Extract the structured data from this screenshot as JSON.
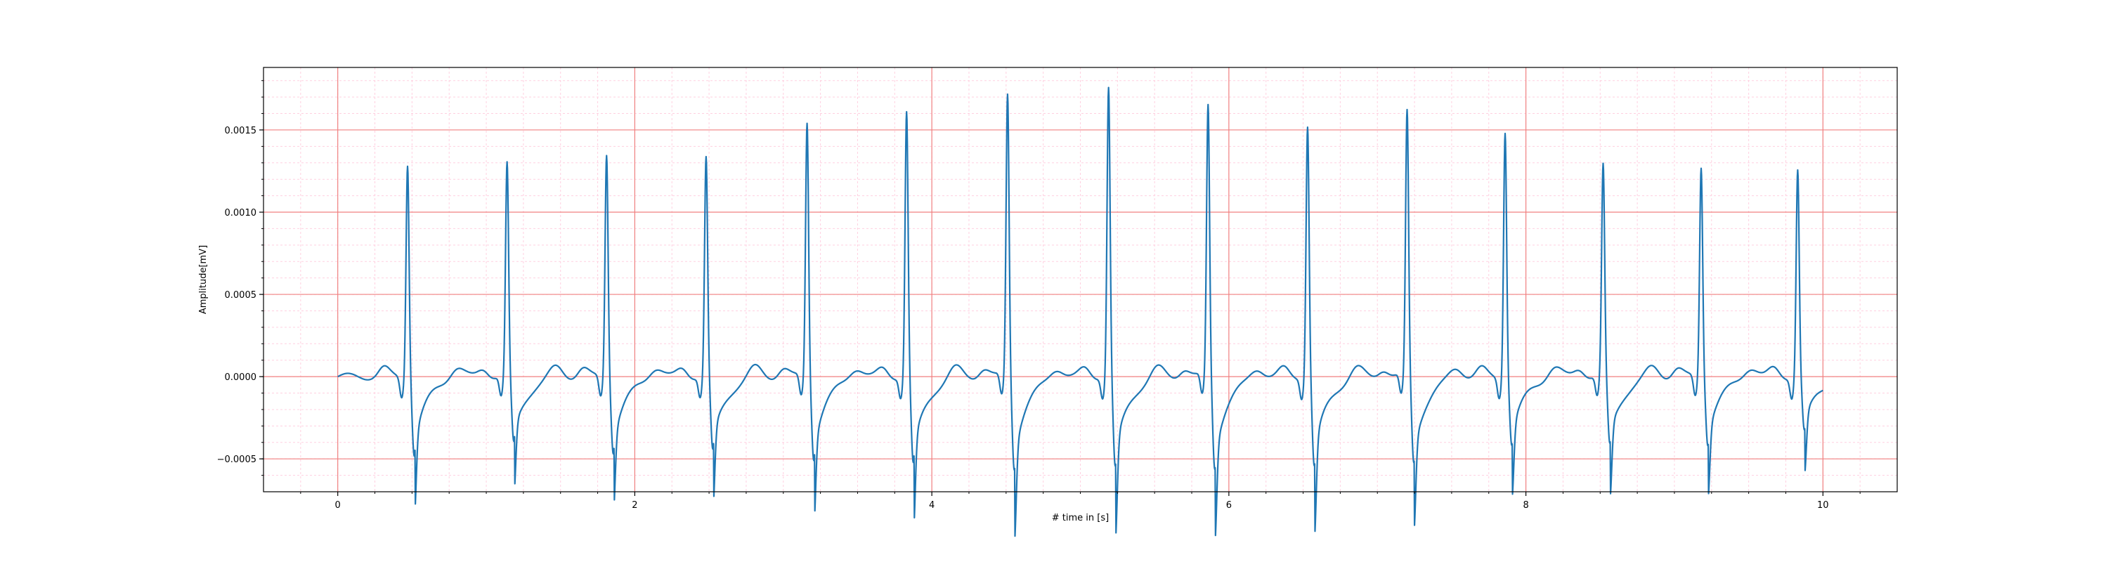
{
  "chart_data": {
    "type": "line",
    "title": "",
    "xlabel": "# time in [s]",
    "ylabel": "Amplitude[mV]",
    "xlim": [
      -0.5,
      10.5
    ],
    "ylim": [
      -0.0007,
      0.00188
    ],
    "x_ticks": [
      0,
      2,
      4,
      6,
      8,
      10
    ],
    "x_tick_labels": [
      "0",
      "2",
      "4",
      "6",
      "8",
      "10"
    ],
    "y_ticks": [
      -0.0005,
      0.0,
      0.0005,
      0.001,
      0.0015
    ],
    "y_tick_labels": [
      "−0.0005",
      "0.0000",
      "0.0005",
      "0.0010",
      "0.0015"
    ],
    "grid": {
      "major": true,
      "minor": true,
      "major_color": "#f08080",
      "minor_color": "#ffd0e0"
    },
    "legend": "none",
    "series": [
      {
        "color": "#1f77b4",
        "sampling_interval_s": 0.01,
        "beats": [
          {
            "t": 0.47,
            "r": 0.0013,
            "s": -0.00047
          },
          {
            "t": 1.14,
            "r": 0.00129,
            "s": -0.00041
          },
          {
            "t": 1.81,
            "r": 0.00136,
            "s": -0.00045
          },
          {
            "t": 2.48,
            "r": 0.00133,
            "s": -0.00046
          },
          {
            "t": 3.16,
            "r": 0.00155,
            "s": -0.00049
          },
          {
            "t": 3.83,
            "r": 0.00161,
            "s": -0.00054
          },
          {
            "t": 4.51,
            "r": 0.00172,
            "s": -0.00055
          },
          {
            "t": 5.19,
            "r": 0.00176,
            "s": -0.00056
          },
          {
            "t": 5.86,
            "r": 0.00165,
            "s": -0.00055
          },
          {
            "t": 6.53,
            "r": 0.00153,
            "s": -0.00055
          },
          {
            "t": 7.2,
            "r": 0.00161,
            "s": -0.00052
          },
          {
            "t": 7.86,
            "r": 0.0015,
            "s": -0.00041
          },
          {
            "t": 8.52,
            "r": 0.00128,
            "s": -0.00042
          },
          {
            "t": 9.18,
            "r": 0.00128,
            "s": -0.0004
          },
          {
            "t": 9.83,
            "r": 0.00126,
            "s": -0.00034
          }
        ]
      }
    ]
  }
}
